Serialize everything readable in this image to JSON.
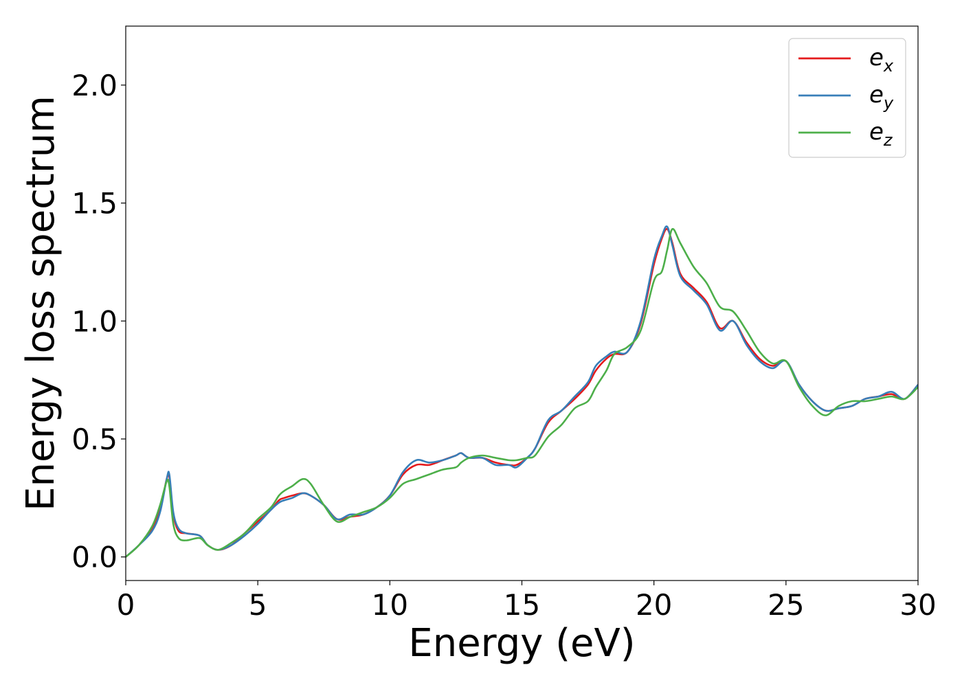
{
  "chart_data": {
    "type": "line",
    "title": "",
    "xlabel": "Energy (eV)",
    "ylabel": "Energy loss spectrum",
    "xlim": [
      0,
      30
    ],
    "ylim": [
      -0.1,
      2.25
    ],
    "xticks": [
      0,
      5,
      10,
      15,
      20,
      25,
      30
    ],
    "xtick_labels": [
      "0",
      "5",
      "10",
      "15",
      "20",
      "25",
      "30"
    ],
    "yticks": [
      0.0,
      0.5,
      1.0,
      1.5,
      2.0
    ],
    "ytick_labels": [
      "0.0",
      "0.5",
      "1.0",
      "1.5",
      "2.0"
    ],
    "grid": false,
    "legend_position": "top-right",
    "series": [
      {
        "name": "e",
        "subscript": "x",
        "color": "#e41a1c",
        "x": [
          0,
          0.5,
          1.0,
          1.3,
          1.55,
          1.65,
          1.8,
          2.0,
          2.3,
          2.8,
          3.1,
          3.5,
          4.0,
          4.5,
          5.0,
          5.5,
          5.8,
          6.0,
          6.3,
          6.7,
          7.0,
          7.5,
          8.0,
          8.5,
          9.0,
          9.5,
          10.0,
          10.5,
          11.0,
          11.5,
          12.0,
          12.5,
          12.7,
          13.0,
          13.5,
          14.0,
          14.5,
          14.8,
          15.2,
          15.5,
          16.0,
          16.5,
          17.0,
          17.5,
          17.8,
          18.2,
          18.5,
          19.0,
          19.5,
          20.0,
          20.3,
          20.5,
          20.7,
          21.0,
          21.5,
          22.0,
          22.5,
          23.0,
          23.5,
          24.0,
          24.5,
          25.0,
          25.5,
          26.0,
          26.5,
          27.0,
          27.5,
          28.0,
          28.5,
          29.0,
          29.5,
          30.0
        ],
        "y": [
          0.0,
          0.05,
          0.12,
          0.2,
          0.33,
          0.34,
          0.18,
          0.11,
          0.1,
          0.09,
          0.05,
          0.03,
          0.05,
          0.1,
          0.15,
          0.2,
          0.24,
          0.25,
          0.26,
          0.27,
          0.26,
          0.22,
          0.16,
          0.17,
          0.18,
          0.21,
          0.26,
          0.35,
          0.39,
          0.39,
          0.41,
          0.43,
          0.44,
          0.42,
          0.42,
          0.4,
          0.39,
          0.39,
          0.42,
          0.46,
          0.57,
          0.62,
          0.67,
          0.73,
          0.79,
          0.84,
          0.86,
          0.87,
          0.99,
          1.24,
          1.35,
          1.39,
          1.33,
          1.2,
          1.14,
          1.08,
          0.97,
          1.0,
          0.91,
          0.84,
          0.81,
          0.83,
          0.73,
          0.66,
          0.62,
          0.63,
          0.64,
          0.67,
          0.68,
          0.69,
          0.67,
          0.73
        ]
      },
      {
        "name": "e",
        "subscript": "y",
        "color": "#377eb8",
        "x": [
          0,
          0.5,
          1.0,
          1.3,
          1.55,
          1.65,
          1.8,
          2.0,
          2.3,
          2.8,
          3.1,
          3.5,
          4.0,
          4.5,
          5.0,
          5.5,
          5.8,
          6.0,
          6.3,
          6.7,
          7.0,
          7.5,
          8.0,
          8.5,
          9.0,
          9.5,
          10.0,
          10.5,
          11.0,
          11.5,
          12.0,
          12.5,
          12.7,
          13.0,
          13.5,
          14.0,
          14.5,
          14.8,
          15.2,
          15.5,
          16.0,
          16.5,
          17.0,
          17.5,
          17.8,
          18.2,
          18.5,
          19.0,
          19.5,
          20.0,
          20.3,
          20.5,
          20.7,
          21.0,
          21.5,
          22.0,
          22.5,
          23.0,
          23.5,
          24.0,
          24.5,
          25.0,
          25.5,
          26.0,
          26.5,
          27.0,
          27.5,
          28.0,
          28.5,
          29.0,
          29.5,
          30.0
        ],
        "y": [
          0.0,
          0.05,
          0.11,
          0.19,
          0.33,
          0.35,
          0.19,
          0.12,
          0.1,
          0.09,
          0.05,
          0.03,
          0.05,
          0.09,
          0.14,
          0.2,
          0.23,
          0.24,
          0.25,
          0.27,
          0.26,
          0.22,
          0.16,
          0.18,
          0.18,
          0.21,
          0.26,
          0.36,
          0.41,
          0.4,
          0.41,
          0.43,
          0.44,
          0.42,
          0.42,
          0.39,
          0.39,
          0.38,
          0.42,
          0.46,
          0.58,
          0.62,
          0.68,
          0.74,
          0.81,
          0.85,
          0.87,
          0.87,
          1.0,
          1.26,
          1.36,
          1.4,
          1.32,
          1.19,
          1.13,
          1.07,
          0.96,
          1.0,
          0.9,
          0.83,
          0.8,
          0.83,
          0.73,
          0.66,
          0.62,
          0.63,
          0.64,
          0.67,
          0.68,
          0.7,
          0.67,
          0.73
        ]
      },
      {
        "name": "e",
        "subscript": "z",
        "color": "#4daf4a",
        "x": [
          0,
          0.5,
          1.0,
          1.3,
          1.55,
          1.65,
          1.8,
          2.0,
          2.3,
          2.8,
          3.1,
          3.5,
          4.0,
          4.5,
          5.0,
          5.5,
          5.8,
          6.0,
          6.3,
          6.7,
          7.0,
          7.5,
          8.0,
          8.5,
          9.0,
          9.5,
          10.0,
          10.5,
          11.0,
          11.5,
          12.0,
          12.5,
          12.7,
          13.0,
          13.5,
          14.0,
          14.5,
          14.8,
          15.2,
          15.5,
          16.0,
          16.5,
          17.0,
          17.5,
          17.8,
          18.2,
          18.5,
          19.0,
          19.5,
          20.0,
          20.3,
          20.5,
          20.7,
          21.0,
          21.5,
          22.0,
          22.5,
          23.0,
          23.5,
          24.0,
          24.5,
          25.0,
          25.5,
          26.0,
          26.5,
          27.0,
          27.5,
          28.0,
          28.5,
          29.0,
          29.5,
          30.0
        ],
        "y": [
          0.0,
          0.05,
          0.13,
          0.22,
          0.32,
          0.3,
          0.14,
          0.08,
          0.07,
          0.08,
          0.05,
          0.03,
          0.06,
          0.1,
          0.16,
          0.21,
          0.26,
          0.28,
          0.3,
          0.33,
          0.31,
          0.22,
          0.15,
          0.17,
          0.19,
          0.21,
          0.25,
          0.31,
          0.33,
          0.35,
          0.37,
          0.38,
          0.4,
          0.42,
          0.43,
          0.42,
          0.41,
          0.41,
          0.42,
          0.43,
          0.51,
          0.56,
          0.63,
          0.66,
          0.72,
          0.79,
          0.86,
          0.89,
          0.96,
          1.17,
          1.21,
          1.3,
          1.39,
          1.33,
          1.23,
          1.16,
          1.06,
          1.04,
          0.96,
          0.87,
          0.82,
          0.83,
          0.72,
          0.64,
          0.6,
          0.64,
          0.66,
          0.66,
          0.67,
          0.68,
          0.67,
          0.72
        ]
      }
    ]
  }
}
